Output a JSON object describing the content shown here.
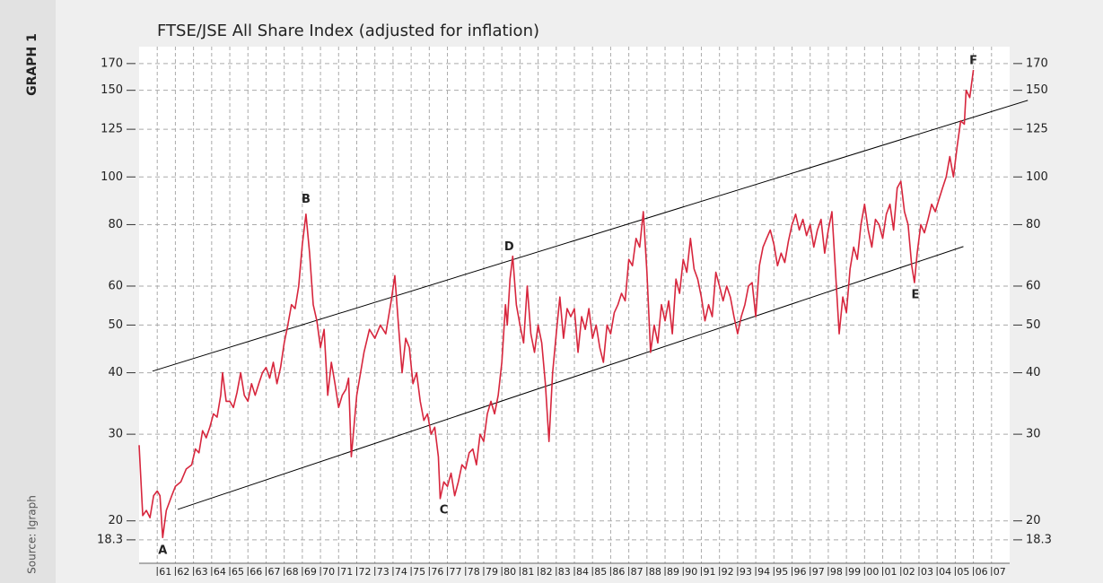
{
  "chart_data": {
    "type": "line",
    "title": "FTSE/JSE All Share Index (adjusted for inflation)",
    "side_label": "GRAPH 1",
    "source": "Source: Igraph",
    "log_y": true,
    "grid": true,
    "color": "#d7263d",
    "xlim": [
      1960,
      2008
    ],
    "ylim": [
      16.4,
      184
    ],
    "yticks": [
      18.3,
      20,
      30,
      40,
      50,
      60,
      80,
      100,
      125,
      150,
      170
    ],
    "xticks": [
      {
        "value": 1961,
        "label": "61"
      },
      {
        "value": 1962,
        "label": "62"
      },
      {
        "value": 1963,
        "label": "63"
      },
      {
        "value": 1964,
        "label": "64"
      },
      {
        "value": 1965,
        "label": "65"
      },
      {
        "value": 1966,
        "label": "66"
      },
      {
        "value": 1967,
        "label": "67"
      },
      {
        "value": 1968,
        "label": "68"
      },
      {
        "value": 1969,
        "label": "69"
      },
      {
        "value": 1970,
        "label": "70"
      },
      {
        "value": 1971,
        "label": "71"
      },
      {
        "value": 1972,
        "label": "72"
      },
      {
        "value": 1973,
        "label": "73"
      },
      {
        "value": 1974,
        "label": "74"
      },
      {
        "value": 1975,
        "label": "75"
      },
      {
        "value": 1976,
        "label": "76"
      },
      {
        "value": 1977,
        "label": "77"
      },
      {
        "value": 1978,
        "label": "78"
      },
      {
        "value": 1979,
        "label": "79"
      },
      {
        "value": 1980,
        "label": "80"
      },
      {
        "value": 1981,
        "label": "81"
      },
      {
        "value": 1982,
        "label": "82"
      },
      {
        "value": 1983,
        "label": "83"
      },
      {
        "value": 1984,
        "label": "84"
      },
      {
        "value": 1985,
        "label": "85"
      },
      {
        "value": 1986,
        "label": "86"
      },
      {
        "value": 1987,
        "label": "87"
      },
      {
        "value": 1988,
        "label": "88"
      },
      {
        "value": 1989,
        "label": "89"
      },
      {
        "value": 1990,
        "label": "90"
      },
      {
        "value": 1991,
        "label": "91"
      },
      {
        "value": 1992,
        "label": "92"
      },
      {
        "value": 1993,
        "label": "93"
      },
      {
        "value": 1994,
        "label": "94"
      },
      {
        "value": 1995,
        "label": "95"
      },
      {
        "value": 1996,
        "label": "96"
      },
      {
        "value": 1997,
        "label": "97"
      },
      {
        "value": 1998,
        "label": "98"
      },
      {
        "value": 1999,
        "label": "99"
      },
      {
        "value": 2000,
        "label": "00"
      },
      {
        "value": 2001,
        "label": "01"
      },
      {
        "value": 2002,
        "label": "02"
      },
      {
        "value": 2003,
        "label": "03"
      },
      {
        "value": 2004,
        "label": "04"
      },
      {
        "value": 2005,
        "label": "05"
      },
      {
        "value": 2006,
        "label": "06"
      },
      {
        "value": 2007,
        "label": "07"
      }
    ],
    "x": [
      1960.0,
      1960.2,
      1960.4,
      1960.6,
      1960.8,
      1961.0,
      1961.15,
      1961.3,
      1961.5,
      1961.8,
      1962.0,
      1962.3,
      1962.6,
      1962.9,
      1963.1,
      1963.3,
      1963.5,
      1963.7,
      1963.9,
      1964.1,
      1964.3,
      1964.5,
      1964.6,
      1964.8,
      1965.0,
      1965.2,
      1965.4,
      1965.6,
      1965.8,
      1966.0,
      1966.2,
      1966.4,
      1966.6,
      1966.8,
      1967.0,
      1967.2,
      1967.4,
      1967.6,
      1967.8,
      1968.0,
      1968.2,
      1968.4,
      1968.6,
      1968.8,
      1969.0,
      1969.2,
      1969.4,
      1969.6,
      1969.8,
      1970.0,
      1970.2,
      1970.4,
      1970.6,
      1970.8,
      1971.0,
      1971.2,
      1971.4,
      1971.55,
      1971.7,
      1972.0,
      1972.4,
      1972.7,
      1973.0,
      1973.3,
      1973.6,
      1973.9,
      1974.1,
      1974.3,
      1974.5,
      1974.7,
      1974.9,
      1975.1,
      1975.3,
      1975.5,
      1975.7,
      1975.9,
      1976.1,
      1976.3,
      1976.5,
      1976.6,
      1976.8,
      1977.0,
      1977.2,
      1977.4,
      1977.6,
      1977.8,
      1978.0,
      1978.2,
      1978.4,
      1978.6,
      1978.8,
      1979.0,
      1979.2,
      1979.4,
      1979.6,
      1979.8,
      1980.0,
      1980.1,
      1980.2,
      1980.3,
      1980.45,
      1980.6,
      1980.8,
      1981.0,
      1981.2,
      1981.4,
      1981.6,
      1981.8,
      1982.0,
      1982.2,
      1982.4,
      1982.6,
      1982.8,
      1983.0,
      1983.2,
      1983.4,
      1983.6,
      1983.8,
      1984.0,
      1984.2,
      1984.4,
      1984.6,
      1984.8,
      1985.0,
      1985.2,
      1985.4,
      1985.6,
      1985.8,
      1986.0,
      1986.2,
      1986.4,
      1986.6,
      1986.8,
      1987.0,
      1987.2,
      1987.4,
      1987.6,
      1987.8,
      1988.0,
      1988.2,
      1988.4,
      1988.6,
      1988.8,
      1989.0,
      1989.2,
      1989.4,
      1989.6,
      1989.8,
      1990.0,
      1990.2,
      1990.4,
      1990.6,
      1990.8,
      1991.0,
      1991.2,
      1991.4,
      1991.6,
      1991.8,
      1992.0,
      1992.2,
      1992.4,
      1992.6,
      1992.8,
      1993.0,
      1993.2,
      1993.4,
      1993.6,
      1993.8,
      1994.0,
      1994.2,
      1994.4,
      1994.6,
      1994.8,
      1995.0,
      1995.2,
      1995.4,
      1995.6,
      1995.8,
      1996.0,
      1996.2,
      1996.4,
      1996.6,
      1996.8,
      1997.0,
      1997.2,
      1997.4,
      1997.6,
      1997.8,
      1998.0,
      1998.2,
      1998.4,
      1998.6,
      1998.8,
      1999.0,
      1999.2,
      1999.4,
      1999.6,
      1999.8,
      2000.0,
      2000.2,
      2000.4,
      2000.6,
      2000.8,
      2001.0,
      2001.2,
      2001.4,
      2001.6,
      2001.8,
      2002.0,
      2002.2,
      2002.4,
      2002.6,
      2002.75,
      2002.9,
      2003.1,
      2003.3,
      2003.5,
      2003.7,
      2003.9,
      2004.1,
      2004.3,
      2004.5,
      2004.7,
      2004.9,
      2005.1,
      2005.3,
      2005.5,
      2005.6,
      2005.8,
      2006.0
    ],
    "values": [
      28.5,
      20.5,
      21,
      20.3,
      22.5,
      23,
      22.5,
      18.5,
      21,
      22.5,
      23.5,
      24,
      25.5,
      26,
      28,
      27.5,
      30.5,
      29.5,
      31,
      33,
      32.5,
      36,
      40,
      35,
      35,
      34,
      36.5,
      40,
      36,
      35,
      38,
      36,
      38,
      40,
      41,
      39,
      42,
      38,
      41,
      46,
      50,
      55,
      54,
      60,
      73,
      84,
      70,
      55,
      51,
      45,
      49,
      36,
      42,
      38,
      34,
      36,
      37,
      39,
      27,
      36,
      44,
      49,
      47,
      50,
      48,
      56,
      63,
      50,
      40,
      47,
      45,
      38,
      40,
      35,
      32,
      33,
      30,
      31,
      27,
      22.2,
      24,
      23.5,
      25,
      22.5,
      24,
      26,
      25.5,
      27.5,
      28,
      26,
      30,
      29,
      33,
      35,
      33,
      36,
      42,
      48,
      55,
      50,
      62,
      69,
      55,
      50,
      46,
      60,
      48,
      44,
      50,
      46,
      38,
      29,
      40,
      48,
      57,
      47,
      54,
      52,
      54,
      44,
      52,
      49,
      54,
      47,
      50,
      45,
      42,
      50,
      48,
      53,
      55,
      58,
      56,
      68,
      66,
      75,
      72,
      85,
      64,
      44,
      50,
      46,
      55,
      51,
      56,
      48,
      62,
      58,
      68,
      64,
      75,
      65,
      62,
      57,
      51,
      55,
      52,
      64,
      60,
      56,
      60,
      57,
      52,
      48,
      52,
      55,
      60,
      61,
      52,
      66,
      72,
      75,
      78,
      73,
      66,
      70,
      67,
      74,
      80,
      84,
      78,
      82,
      76,
      80,
      72,
      78,
      82,
      70,
      78,
      85,
      64,
      48,
      57,
      53,
      65,
      72,
      68,
      80,
      88,
      78,
      72,
      82,
      80,
      75,
      84,
      88,
      78,
      95,
      98,
      85,
      80,
      66,
      61,
      70,
      80,
      77,
      82,
      88,
      85,
      90,
      95,
      100,
      110,
      100,
      115,
      130,
      128,
      150,
      145,
      165
    ],
    "trendlines": [
      {
        "color": "#000000",
        "x": [
          1960.74,
          2009.0
        ],
        "values": [
          40.3,
          143.1
        ]
      },
      {
        "color": "#000000",
        "x": [
          1962.13,
          2005.45
        ],
        "values": [
          21.1,
          72.2
        ]
      }
    ],
    "annotations": [
      {
        "text": "A",
        "x": 1961.3,
        "y": 17.4
      },
      {
        "text": "B",
        "x": 1969.2,
        "y": 90
      },
      {
        "text": "C",
        "x": 1976.8,
        "y": 21
      },
      {
        "text": "D",
        "x": 1980.4,
        "y": 72
      },
      {
        "text": "E",
        "x": 2002.8,
        "y": 57.5
      },
      {
        "text": "F",
        "x": 2006.0,
        "y": 172
      }
    ]
  }
}
